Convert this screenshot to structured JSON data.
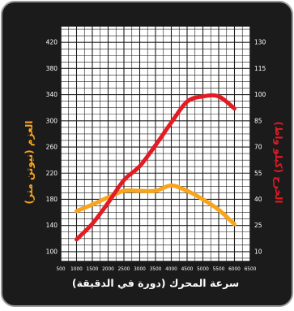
{
  "chart_data": {
    "type": "line",
    "xlabel": "سرعة المحرك (دورة في الدقيقة)",
    "ylabel_left": "العزم (نيوتن متر)",
    "ylabel_right": "الخرج (كيلو واط)",
    "x_ticks": [
      500,
      1000,
      1500,
      2000,
      2500,
      3000,
      3500,
      4000,
      4500,
      5000,
      5500,
      6000,
      6500
    ],
    "xlim": [
      500,
      6500
    ],
    "y_left_ticks": [
      100,
      140,
      180,
      220,
      260,
      300,
      340,
      380,
      420
    ],
    "y_left_range": [
      85,
      445
    ],
    "y_right_ticks": [
      10,
      25,
      40,
      55,
      70,
      85,
      100,
      115,
      130
    ],
    "y_right_range": [
      4.375,
      139.375
    ],
    "grid": true,
    "colors": {
      "background": "#1b1b1b",
      "plot_background": "#ffffff",
      "grid": "#1b1b1b",
      "torque": "#f8a51c",
      "power": "#e31b23",
      "left_label": "#f8a51c",
      "right_label": "#e31b23",
      "axis_text": "#ffffff"
    },
    "series": [
      {
        "axis": "left",
        "color": "#f8a51c",
        "x": [
          1000,
          1500,
          2000,
          2500,
          3000,
          3500,
          4000,
          4500,
          5000,
          5500,
          6000
        ],
        "values": [
          162,
          172,
          183,
          193,
          193,
          193,
          201,
          193,
          180,
          164,
          142
        ]
      },
      {
        "axis": "right",
        "color": "#e31b23",
        "x": [
          1000,
          1500,
          2000,
          2500,
          3000,
          3500,
          4000,
          4500,
          5000,
          5500,
          6000
        ],
        "values": [
          17,
          26,
          38,
          51,
          59,
          71,
          84,
          96,
          99,
          99,
          92
        ]
      }
    ]
  }
}
